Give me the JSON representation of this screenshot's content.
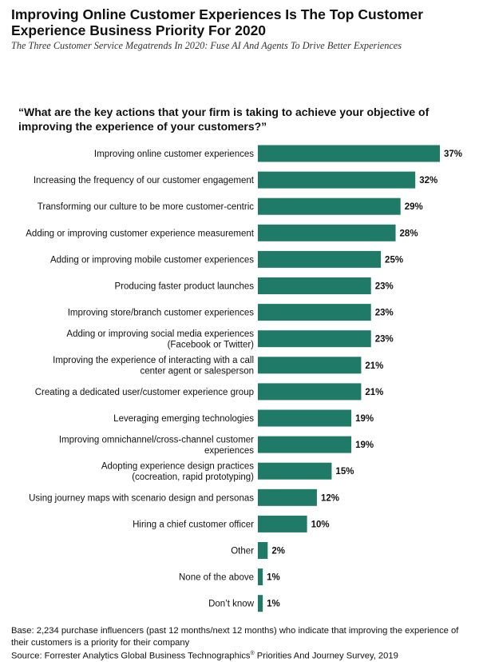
{
  "header": {
    "title": "Improving Online Customer Experiences Is The Top Customer Experience Business Priority For 2020",
    "subtitle": "The Three Customer Service Megatrends In 2020: Fuse AI And Agents To Drive Better Experiences"
  },
  "question": "“What are the key actions that your firm is taking to achieve your objective of improving the experience of your customers?”",
  "colors": {
    "bar": "#1f7a67",
    "text": "#111111"
  },
  "chart_data": {
    "type": "bar",
    "orientation": "horizontal",
    "categories": [
      [
        "Improving online customer experiences"
      ],
      [
        "Increasing the frequency of our customer engagement"
      ],
      [
        "Transforming our culture to be more customer-centric"
      ],
      [
        "Adding or improving customer experience measurement"
      ],
      [
        "Adding or improving mobile customer experiences"
      ],
      [
        "Producing faster product launches"
      ],
      [
        "Improving store/branch customer experiences"
      ],
      [
        "Adding or improving social media experiences",
        "(Facebook or Twitter)"
      ],
      [
        "Improving the experience of interacting with a call",
        "center agent or salesperson"
      ],
      [
        "Creating a dedicated user/customer experience group"
      ],
      [
        "Leveraging emerging technologies"
      ],
      [
        "Improving omnichannel/cross-channel customer",
        "experiences"
      ],
      [
        "Adopting experience design practices",
        "(cocreation, rapid prototyping)"
      ],
      [
        "Using journey maps with scenario design and personas"
      ],
      [
        "Hiring a chief customer officer"
      ],
      [
        "Other"
      ],
      [
        "None of the above"
      ],
      [
        "Don’t know"
      ]
    ],
    "values": [
      37,
      32,
      29,
      28,
      25,
      23,
      23,
      23,
      21,
      21,
      19,
      19,
      15,
      12,
      10,
      2,
      1,
      1
    ],
    "value_labels": [
      "37%",
      "32%",
      "29%",
      "28%",
      "25%",
      "23%",
      "23%",
      "23%",
      "21%",
      "21%",
      "19%",
      "19%",
      "15%",
      "12%",
      "10%",
      "2%",
      "1%",
      "1%"
    ],
    "xlim": [
      0,
      37
    ]
  },
  "footer": {
    "base": "Base: 2,234 purchase influencers (past 12 months/next 12 months) who indicate that improving the experience of their customers is a priority for their company",
    "source_pre": "Source: Forrester Analytics Global Business Technographics",
    "source_reg": "®",
    "source_post": " Priorities And Journey Survey, 2019"
  }
}
